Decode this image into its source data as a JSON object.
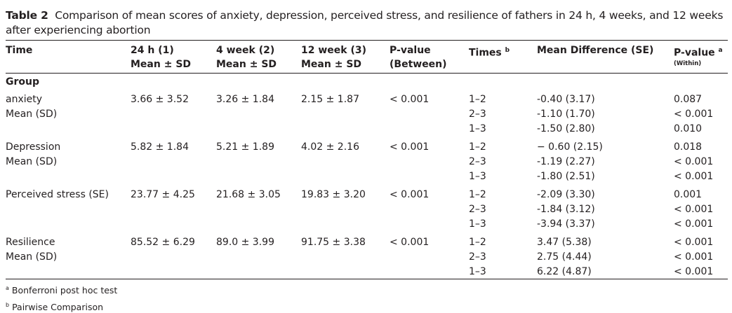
{
  "caption": {
    "label": "Table 2",
    "text": "Comparison of mean scores of anxiety, depression, perceived stress, and resilience of fathers in 24 h, 4 weeks, and 12 weeks after experiencing abortion"
  },
  "headers": {
    "time": "Time",
    "h24_line1": "24 h (1)",
    "h24_line2": "Mean ± SD",
    "w4_line1": "4 week (2)",
    "w4_line2": "Mean ± SD",
    "w12_line1": "12 week (3)",
    "w12_line2": "Mean ± SD",
    "pbetween_line1": "P-value",
    "pbetween_line2": "(Between)",
    "times": "Times",
    "times_sup": "b",
    "meandiff": "Mean Difference (SE)",
    "pwithin": "P-value",
    "pwithin_sup": "a",
    "pwithin_sub": "(Within)"
  },
  "group_label": "Group",
  "rows": [
    {
      "label1": "anxiety",
      "label2": "Mean (SD)",
      "h24": "3.66 ± 3.52",
      "w4": "3.26 ± 1.84",
      "w12": "2.15 ± 1.87",
      "p_between": "< 0.001",
      "comparisons": [
        {
          "times": "1–2",
          "diff": "-0.40 (3.17)",
          "p": "0.087"
        },
        {
          "times": "2–3",
          "diff": "-1.10 (1.70)",
          "p": "< 0.001"
        },
        {
          "times": "1–3",
          "diff": "-1.50 (2.80)",
          "p": "0.010"
        }
      ]
    },
    {
      "label1": "Depression",
      "label2": "Mean (SD)",
      "h24": "5.82 ± 1.84",
      "w4": "5.21 ± 1.89",
      "w12": "4.02 ± 2.16",
      "p_between": "< 0.001",
      "comparisons": [
        {
          "times": "1–2",
          "diff": "− 0.60 (2.15)",
          "p": "0.018"
        },
        {
          "times": "2–3",
          "diff": "-1.19 (2.27)",
          "p": "< 0.001"
        },
        {
          "times": "1–3",
          "diff": "-1.80 (2.51)",
          "p": "< 0.001"
        }
      ]
    },
    {
      "label1": "Perceived stress (SE)",
      "label2": "",
      "h24": "23.77 ± 4.25",
      "w4": "21.68 ± 3.05",
      "w12": "19.83 ± 3.20",
      "p_between": "< 0.001",
      "comparisons": [
        {
          "times": "1–2",
          "diff": "-2.09 (3.30)",
          "p": "0.001"
        },
        {
          "times": "2–3",
          "diff": "-1.84 (3.12)",
          "p": "< 0.001"
        },
        {
          "times": "1–3",
          "diff": "-3.94 (3.37)",
          "p": "< 0.001"
        }
      ]
    },
    {
      "label1": "Resilience",
      "label2": "Mean (SD)",
      "h24": "85.52 ± 6.29",
      "w4": "89.0 ± 3.99",
      "w12": "91.75 ± 3.38",
      "p_between": "< 0.001",
      "comparisons": [
        {
          "times": "1–2",
          "diff": "3.47 (5.38)",
          "p": "< 0.001"
        },
        {
          "times": "2–3",
          "diff": "2.75 (4.44)",
          "p": "< 0.001"
        },
        {
          "times": "1–3",
          "diff": "6.22 (4.87)",
          "p": "< 0.001"
        }
      ]
    }
  ],
  "footnotes": [
    {
      "mark": "a",
      "text": "Bonferroni post hoc test"
    },
    {
      "mark": "b",
      "text": "Pairwise Comparison"
    }
  ]
}
